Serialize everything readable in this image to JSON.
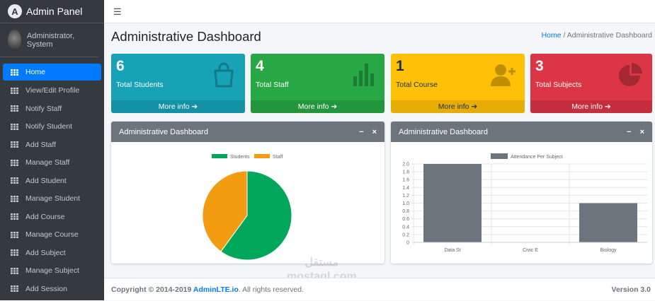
{
  "brand": {
    "title": "Admin Panel"
  },
  "user": {
    "name": "Administrator, System"
  },
  "sidebar": {
    "items": [
      {
        "label": "Home",
        "active": true
      },
      {
        "label": "View/Edit Profile"
      },
      {
        "label": "Notify Staff"
      },
      {
        "label": "Notify Student"
      },
      {
        "label": "Add Staff"
      },
      {
        "label": "Manage Staff"
      },
      {
        "label": "Add Student"
      },
      {
        "label": "Manage Student"
      },
      {
        "label": "Add Course"
      },
      {
        "label": "Manage Course"
      },
      {
        "label": "Add Subject"
      },
      {
        "label": "Manage Subject"
      },
      {
        "label": "Add Session"
      }
    ]
  },
  "page": {
    "title": "Administrative Dashboard",
    "breadcrumb": {
      "home": "Home",
      "sep": "/",
      "current": "Administrative Dashboard"
    }
  },
  "stats": [
    {
      "value": "6",
      "label": "Total Students",
      "more": "More info ➔",
      "color": "#17a2b8",
      "icon": "shopping-bag-icon"
    },
    {
      "value": "4",
      "label": "Total Staff",
      "more": "More info ➔",
      "color": "#28a745",
      "icon": "bar-chart-icon"
    },
    {
      "value": "1",
      "label": "Total Course",
      "more": "More info ➔",
      "color": "#ffc107",
      "icon": "user-plus-icon"
    },
    {
      "value": "3",
      "label": "Total Subjects",
      "more": "More info ➔",
      "color": "#dc3545",
      "icon": "pie-chart-icon"
    }
  ],
  "cards": [
    {
      "title": "Administrative Dashboard",
      "minimize": "−",
      "close": "×"
    },
    {
      "title": "Administrative Dashboard",
      "minimize": "−",
      "close": "×"
    }
  ],
  "chart_data": [
    {
      "type": "pie",
      "categories": [
        "Students",
        "Staff"
      ],
      "values": [
        6,
        4
      ],
      "colors": [
        "#00a65a",
        "#f39c12"
      ],
      "legend": "top"
    },
    {
      "type": "bar",
      "categories": [
        "Data St",
        "Civic E",
        "Biology"
      ],
      "series": [
        {
          "name": "Attendance Per Subject",
          "values": [
            2,
            0,
            1
          ]
        }
      ],
      "ylim": [
        0,
        2
      ],
      "yticks": [
        "0",
        "0.2",
        "0.4",
        "0.6",
        "0.8",
        "1.0",
        "1.2",
        "1.4",
        "1.6",
        "1.8",
        "2.0"
      ],
      "color": "#6c757d",
      "grid": true,
      "legend": "top"
    }
  ],
  "footer": {
    "copyright": "Copyright © 2014-2019 ",
    "link": "AdminLTE.io",
    "rest": ". All rights reserved.",
    "version": "Version 3.0"
  },
  "watermark": {
    "line1": "مستقل",
    "line2": "mostaql.com"
  }
}
